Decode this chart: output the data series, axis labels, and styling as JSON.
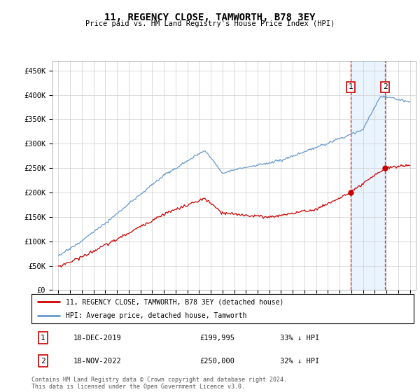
{
  "title": "11, REGENCY CLOSE, TAMWORTH, B78 3EY",
  "subtitle": "Price paid vs. HM Land Registry's House Price Index (HPI)",
  "footer": "Contains HM Land Registry data © Crown copyright and database right 2024.\nThis data is licensed under the Open Government Licence v3.0.",
  "legend_line1": "11, REGENCY CLOSE, TAMWORTH, B78 3EY (detached house)",
  "legend_line2": "HPI: Average price, detached house, Tamworth",
  "sale1_label": "1",
  "sale1_date": "18-DEC-2019",
  "sale1_price": "£199,995",
  "sale1_hpi": "33% ↓ HPI",
  "sale1_x": 2019.96,
  "sale1_y": 199995,
  "sale2_label": "2",
  "sale2_date": "18-NOV-2022",
  "sale2_price": "£250,000",
  "sale2_hpi": "32% ↓ HPI",
  "sale2_x": 2022.88,
  "sale2_y": 250000,
  "hpi_color": "#6699cc",
  "price_color": "#cc0000",
  "dashed_color": "#cc0000",
  "shade_color": "#ddeeff",
  "ylim": [
    0,
    470000
  ],
  "yticks": [
    0,
    50000,
    100000,
    150000,
    200000,
    250000,
    300000,
    350000,
    400000,
    450000
  ],
  "xlim": [
    1994.5,
    2025.5
  ],
  "xticks": [
    1995,
    1996,
    1997,
    1998,
    1999,
    2000,
    2001,
    2002,
    2003,
    2004,
    2005,
    2006,
    2007,
    2008,
    2009,
    2010,
    2011,
    2012,
    2013,
    2014,
    2015,
    2016,
    2017,
    2018,
    2019,
    2020,
    2021,
    2022,
    2023,
    2024,
    2025
  ]
}
